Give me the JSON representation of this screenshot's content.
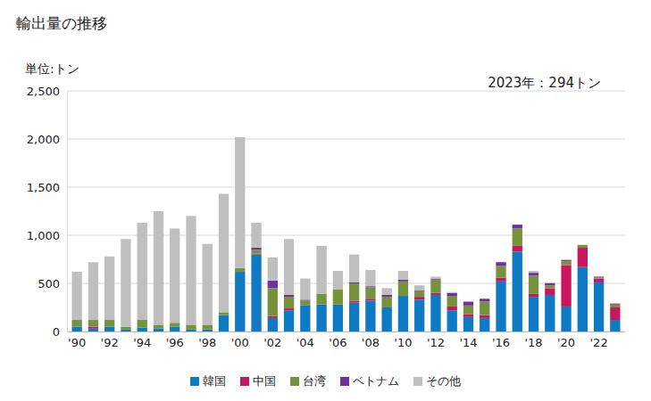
{
  "chart_data": {
    "type": "bar",
    "stacked": true,
    "title": "輸出量の推移",
    "ylabel": "単位:トン",
    "annotations": [
      "2023年：294トン"
    ],
    "categories": [
      "'90",
      null,
      "'92",
      null,
      "'94",
      null,
      "'96",
      null,
      "'98",
      null,
      "'00",
      null,
      "'02",
      null,
      "'04",
      null,
      "'06",
      null,
      "'08",
      null,
      "'10",
      null,
      "'12",
      null,
      "'14",
      null,
      "'16",
      null,
      "'18",
      null,
      "'20",
      null,
      "'22",
      null
    ],
    "series": [
      {
        "name": "韓国",
        "color": "#0f7ac4",
        "values": [
          50,
          30,
          50,
          20,
          40,
          30,
          50,
          20,
          20,
          170,
          620,
          800,
          140,
          220,
          270,
          280,
          280,
          300,
          320,
          250,
          370,
          330,
          380,
          220,
          150,
          140,
          520,
          830,
          360,
          380,
          260,
          670,
          510,
          120
        ]
      },
      {
        "name": "中国",
        "color": "#c8175e",
        "values": [
          0,
          20,
          0,
          0,
          0,
          0,
          0,
          0,
          0,
          0,
          0,
          10,
          20,
          20,
          0,
          0,
          0,
          20,
          20,
          0,
          0,
          30,
          20,
          40,
          30,
          30,
          40,
          60,
          30,
          70,
          430,
          200,
          40,
          130
        ]
      },
      {
        "name": "台湾",
        "color": "#76923c",
        "values": [
          70,
          70,
          70,
          30,
          80,
          40,
          40,
          50,
          50,
          30,
          40,
          40,
          290,
          120,
          50,
          110,
          160,
          180,
          120,
          110,
          150,
          60,
          140,
          110,
          90,
          140,
          120,
          180,
          190,
          30,
          40,
          30,
          10,
          30
        ]
      },
      {
        "name": "ベトナム",
        "color": "#7030a0",
        "values": [
          0,
          0,
          0,
          0,
          0,
          0,
          0,
          0,
          0,
          0,
          0,
          20,
          80,
          20,
          10,
          0,
          0,
          10,
          10,
          20,
          20,
          10,
          10,
          30,
          40,
          30,
          40,
          40,
          30,
          20,
          10,
          0,
          10,
          10
        ]
      },
      {
        "name": "その他",
        "color": "#bfbfbf",
        "values": [
          500,
          600,
          660,
          910,
          1010,
          1180,
          980,
          1130,
          840,
          1230,
          1360,
          260,
          240,
          580,
          220,
          500,
          190,
          290,
          170,
          70,
          90,
          50,
          20,
          10,
          0,
          0,
          0,
          0,
          20,
          10,
          10,
          0,
          0,
          4
        ]
      }
    ],
    "ylim": [
      0,
      2500
    ],
    "yticks": [
      0,
      500,
      {
        "value": 1000,
        "label": "1,000"
      },
      {
        "value": 1500,
        "label": "1,500"
      },
      {
        "value": 2000,
        "label": "2,000"
      },
      {
        "value": 2500,
        "label": "2,500"
      }
    ],
    "grid": true,
    "legend": "bottom"
  }
}
